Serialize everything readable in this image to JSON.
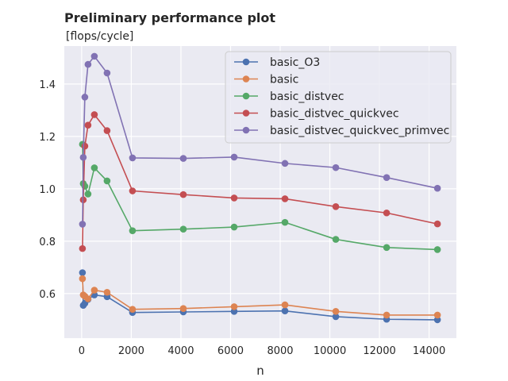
{
  "chart_data": {
    "type": "line",
    "title": "Preliminary performance plot",
    "subtitle": "[flops/cycle]",
    "xlabel": "n",
    "ylabel": "",
    "xlim": [
      -700,
      15100
    ],
    "ylim": [
      0.43,
      1.545
    ],
    "xticks": [
      0,
      2000,
      4000,
      6000,
      8000,
      10000,
      12000,
      14000
    ],
    "yticks": [
      0.6,
      0.8,
      1.0,
      1.2,
      1.4
    ],
    "ytick_labels": [
      "0.6",
      "0.8",
      "1.0",
      "1.2",
      "1.4"
    ],
    "grid": true,
    "legend_position": "top-right",
    "x": [
      32,
      64,
      128,
      256,
      512,
      1024,
      2048,
      4096,
      6144,
      8192,
      10240,
      12288,
      14336
    ],
    "series": [
      {
        "name": "basic_O3",
        "color": "#4c72b0",
        "values": [
          0.68,
          0.555,
          0.563,
          0.578,
          0.595,
          0.588,
          0.528,
          0.53,
          0.532,
          0.534,
          0.512,
          0.502,
          0.5
        ]
      },
      {
        "name": "basic",
        "color": "#dd8452",
        "values": [
          0.657,
          0.595,
          0.59,
          0.58,
          0.613,
          0.605,
          0.54,
          0.543,
          0.55,
          0.557,
          0.532,
          0.518,
          0.518
        ]
      },
      {
        "name": "basic_distvec",
        "color": "#55a868",
        "values": [
          1.17,
          1.02,
          1.01,
          0.98,
          1.08,
          1.03,
          0.84,
          0.846,
          0.854,
          0.872,
          0.807,
          0.776,
          0.768
        ]
      },
      {
        "name": "basic_distvec_quickvec",
        "color": "#c44e52",
        "values": [
          0.772,
          0.958,
          1.163,
          1.243,
          1.283,
          1.222,
          0.992,
          0.978,
          0.965,
          0.962,
          0.932,
          0.908,
          0.866
        ]
      },
      {
        "name": "basic_distvec_quickvec_primvec",
        "color": "#8172b3",
        "values": [
          0.865,
          1.12,
          1.35,
          1.475,
          1.506,
          1.442,
          1.118,
          1.116,
          1.121,
          1.097,
          1.081,
          1.043,
          1.002
        ]
      }
    ]
  }
}
